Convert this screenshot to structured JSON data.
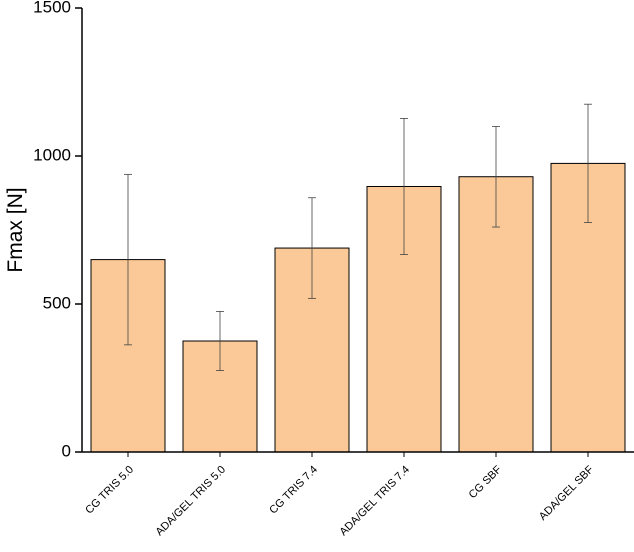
{
  "chart_data": {
    "type": "bar",
    "y_label": "Fmax [N]",
    "categories": [
      "CG TRIS 5.0",
      "ADA/GEL TRIS 5.0",
      "CG TRIS 7.4",
      "ADA/GEL TRIS 7.4",
      "CG SBF",
      "ADA/GEL SBF"
    ],
    "values": [
      650,
      375,
      689,
      897,
      930,
      975
    ],
    "errors": [
      288,
      100,
      170,
      230,
      170,
      200
    ],
    "color": "#fbc897",
    "ylim": [
      0,
      1500
    ],
    "yticks": [
      0,
      500,
      1000,
      1500
    ]
  }
}
